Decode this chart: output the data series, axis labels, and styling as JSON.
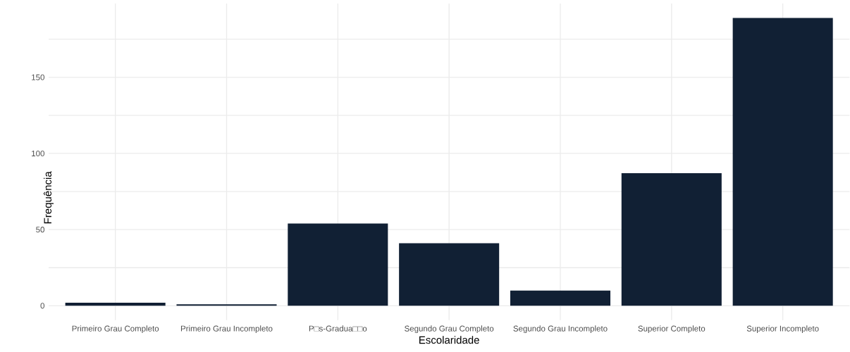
{
  "chart_data": {
    "type": "bar",
    "xlabel": "Escolaridade",
    "ylabel": "Frequência",
    "categories": [
      "Primeiro Grau Completo",
      "Primeiro Grau Incompleto",
      "P□s-Gradua□□o",
      "Segundo Grau Completo",
      "Segundo Grau Incompleto",
      "Superior Completo",
      "Superior Incompleto"
    ],
    "values": [
      2,
      1,
      54,
      41,
      10,
      87,
      189
    ],
    "color": "#112034",
    "ylim": [
      -9.45,
      198.45
    ],
    "yticks": [
      0,
      {
        "value": 25,
        "label": null
      },
      50,
      {
        "value": 75,
        "label": null
      },
      100,
      {
        "value": 125,
        "label": null
      },
      150,
      {
        "value": 175,
        "label": null
      }
    ],
    "grid": true
  }
}
